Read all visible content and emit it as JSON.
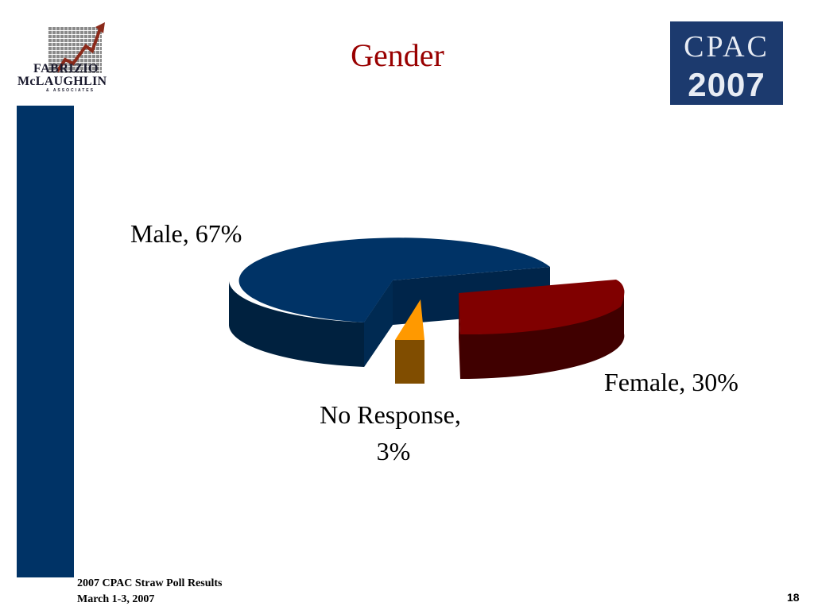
{
  "slide": {
    "title": "Gender",
    "footer_line1": "2007 CPAC Straw Poll Results",
    "footer_line2": "March 1-3, 2007",
    "page_number": "18"
  },
  "logos": {
    "left": {
      "line1": "FABRIZIO",
      "line2": "McLAUGHLIN",
      "line3": "& ASSOCIATES"
    },
    "right": {
      "line1": "CPAC",
      "line2": "2007"
    }
  },
  "colors": {
    "sidebar": "#003366",
    "title": "#990000",
    "male": "#003366",
    "female": "#800000",
    "no_response": "#FF9900"
  },
  "chart_data": {
    "type": "pie",
    "title": "",
    "style": "3d-exploded",
    "categories": [
      "Male",
      "Female",
      "No Response"
    ],
    "values": [
      67,
      30,
      3
    ],
    "labels": [
      "Male, 67%",
      "Female, 30%",
      "No Response, 3%"
    ],
    "colors": [
      "#003366",
      "#800000",
      "#FF9900"
    ]
  }
}
